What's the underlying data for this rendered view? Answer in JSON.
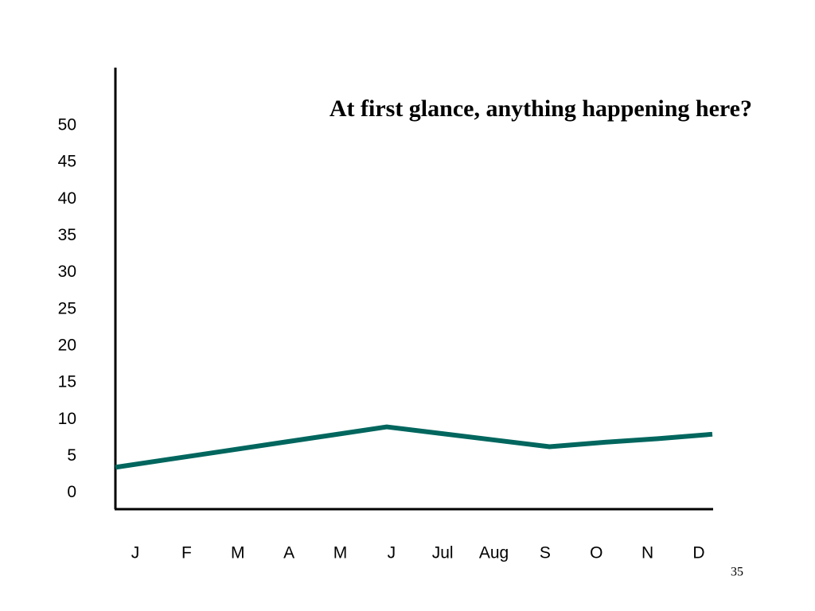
{
  "chart_data": {
    "type": "line",
    "title": "At first glance, anything happening here?",
    "categories": [
      "J",
      "F",
      "M",
      "A",
      "M",
      "J",
      "Jul",
      "Aug",
      "S",
      "O",
      "N",
      "D"
    ],
    "series": [
      {
        "color": "#00665e",
        "values": [
          3.5,
          4.6,
          5.7,
          6.8,
          7.9,
          9.0,
          8.1,
          7.2,
          6.3,
          6.9,
          7.4,
          8.0
        ]
      }
    ],
    "ylim": [
      -2.2,
      57.9
    ],
    "yticks": [
      0,
      5,
      10,
      15,
      20,
      25,
      30,
      35,
      40,
      45,
      50
    ],
    "grid": false
  },
  "page_number": "35"
}
